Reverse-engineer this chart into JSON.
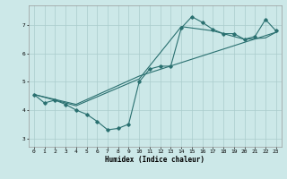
{
  "xlabel": "Humidex (Indice chaleur)",
  "bg_color": "#cce8e8",
  "grid_color": "#aacccc",
  "line_color": "#2a7070",
  "xlim": [
    -0.5,
    23.5
  ],
  "ylim": [
    2.7,
    7.7
  ],
  "xticks": [
    0,
    1,
    2,
    3,
    4,
    5,
    6,
    7,
    8,
    9,
    10,
    11,
    12,
    13,
    14,
    15,
    16,
    17,
    18,
    19,
    20,
    21,
    22,
    23
  ],
  "yticks": [
    3,
    4,
    5,
    6,
    7
  ],
  "line1_x": [
    0,
    1,
    2,
    3,
    4,
    5,
    6,
    7,
    8,
    9,
    10,
    11,
    12,
    13,
    14,
    15,
    16,
    17,
    18,
    19,
    20,
    21,
    22,
    23
  ],
  "line1_y": [
    4.55,
    4.25,
    4.35,
    4.2,
    4.0,
    3.85,
    3.6,
    3.3,
    3.35,
    3.5,
    5.0,
    5.45,
    5.55,
    5.55,
    6.9,
    7.3,
    7.1,
    6.85,
    6.7,
    6.7,
    6.5,
    6.6,
    7.2,
    6.8
  ],
  "line2_x": [
    0,
    4,
    10,
    14,
    17,
    20,
    22,
    23
  ],
  "line2_y": [
    4.55,
    4.15,
    5.1,
    6.95,
    6.8,
    6.5,
    6.55,
    6.75
  ],
  "line3_x": [
    0,
    4,
    10,
    23
  ],
  "line3_y": [
    4.55,
    4.2,
    5.2,
    6.75
  ]
}
